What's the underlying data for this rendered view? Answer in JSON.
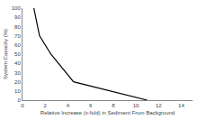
{
  "chart_data": {
    "type": "line",
    "x_label": "Relative Increase (x-fold) in Sediment From Background",
    "y_label": "System Capacity (%)",
    "x": [
      1,
      1.5,
      2.5,
      4.5,
      11
    ],
    "values": [
      100,
      70,
      50,
      20,
      0
    ],
    "color": "#000000",
    "xlim": [
      0,
      15
    ],
    "xticks": [
      0,
      2,
      4,
      6,
      8,
      10,
      12,
      14
    ],
    "ylim": [
      0,
      100
    ],
    "yticks": [
      0,
      10,
      20,
      30,
      40,
      50,
      60,
      70,
      80,
      90,
      100
    ],
    "grid": false
  }
}
